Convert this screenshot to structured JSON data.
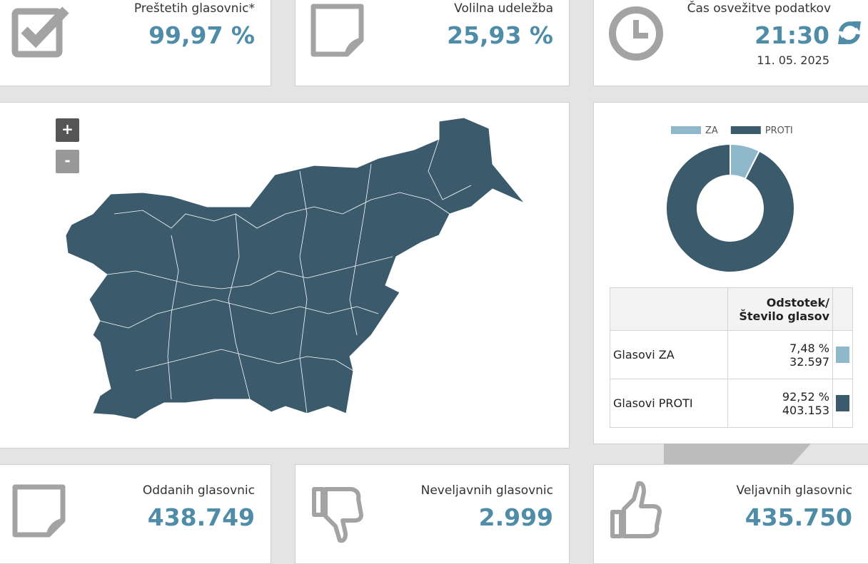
{
  "stats_top": [
    {
      "label": "Preštetih glasovnic*",
      "value": "99,97 %"
    },
    {
      "label": "Volilna udeležba",
      "value": "25,93 %"
    }
  ],
  "refresh": {
    "label": "Čas osvežitve podatkov",
    "time": "21:30",
    "date": "11. 05. 2025"
  },
  "map": {
    "zoom_in": "+",
    "zoom_out": "-"
  },
  "chart_data": {
    "type": "pie",
    "categories": [
      "ZA",
      "PROTI"
    ],
    "values": [
      7.48,
      92.52
    ],
    "colors": [
      "#8fb9cb",
      "#3b5b6c"
    ],
    "legend": "top"
  },
  "table": {
    "header": [
      "Odstotek/",
      "Število glasov"
    ],
    "rows": [
      {
        "label": "Glasovi ZA",
        "percent": "7,48 %",
        "count": "32.597"
      },
      {
        "label": "Glasovi PROTI",
        "percent": "92,52 %",
        "count": "403.153"
      }
    ]
  },
  "stats_bottom": [
    {
      "label": "Oddanih glasovnic",
      "value": "438.749"
    },
    {
      "label": "Neveljavnih glasovnic",
      "value": "2.999"
    },
    {
      "label": "Veljavnih glasovnic",
      "value": "435.750"
    }
  ]
}
